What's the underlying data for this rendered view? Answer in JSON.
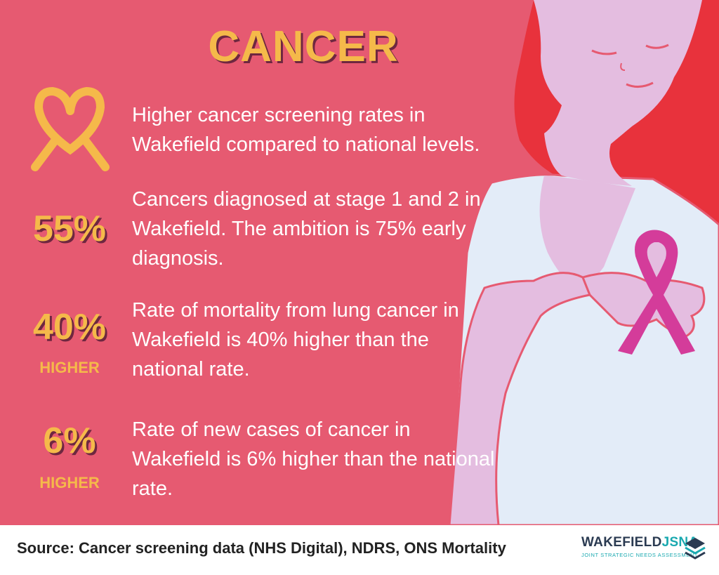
{
  "title": "CANCER",
  "stats": [
    {
      "value": "",
      "sub": "",
      "icon": "heart-ribbon-icon",
      "text": "Higher cancer screening rates in Wakefield compared to national levels."
    },
    {
      "value": "55%",
      "sub": "",
      "text": "Cancers diagnosed at stage 1 and 2 in Wakefield. The ambition is 75% early diagnosis."
    },
    {
      "value": "40%",
      "sub": "HIGHER",
      "text": "Rate of mortality from lung cancer in Wakefield is 40% higher than the national rate."
    },
    {
      "value": "6%",
      "sub": "HIGHER",
      "text": "Rate of new cases of cancer in Wakefield is 6% higher than the national rate."
    }
  ],
  "footer": {
    "source": "Source: Cancer screening data (NHS Digital), NDRS, ONS Mortality",
    "logo_name": "WAKEFIELD",
    "logo_jsna": "JSNA",
    "logo_tagline": "JOINT STRATEGIC NEEDS ASSESSMENT"
  },
  "colors": {
    "background": "#e65a71",
    "accent": "#f5b94a",
    "hair": "#e8323c",
    "skin": "#e4bde0",
    "shirt": "#e3ecf8",
    "ribbon": "#d43c9a",
    "footer": "#ffffff",
    "logo_teal": "#1aa9b0",
    "logo_navy": "#2b3b52"
  }
}
